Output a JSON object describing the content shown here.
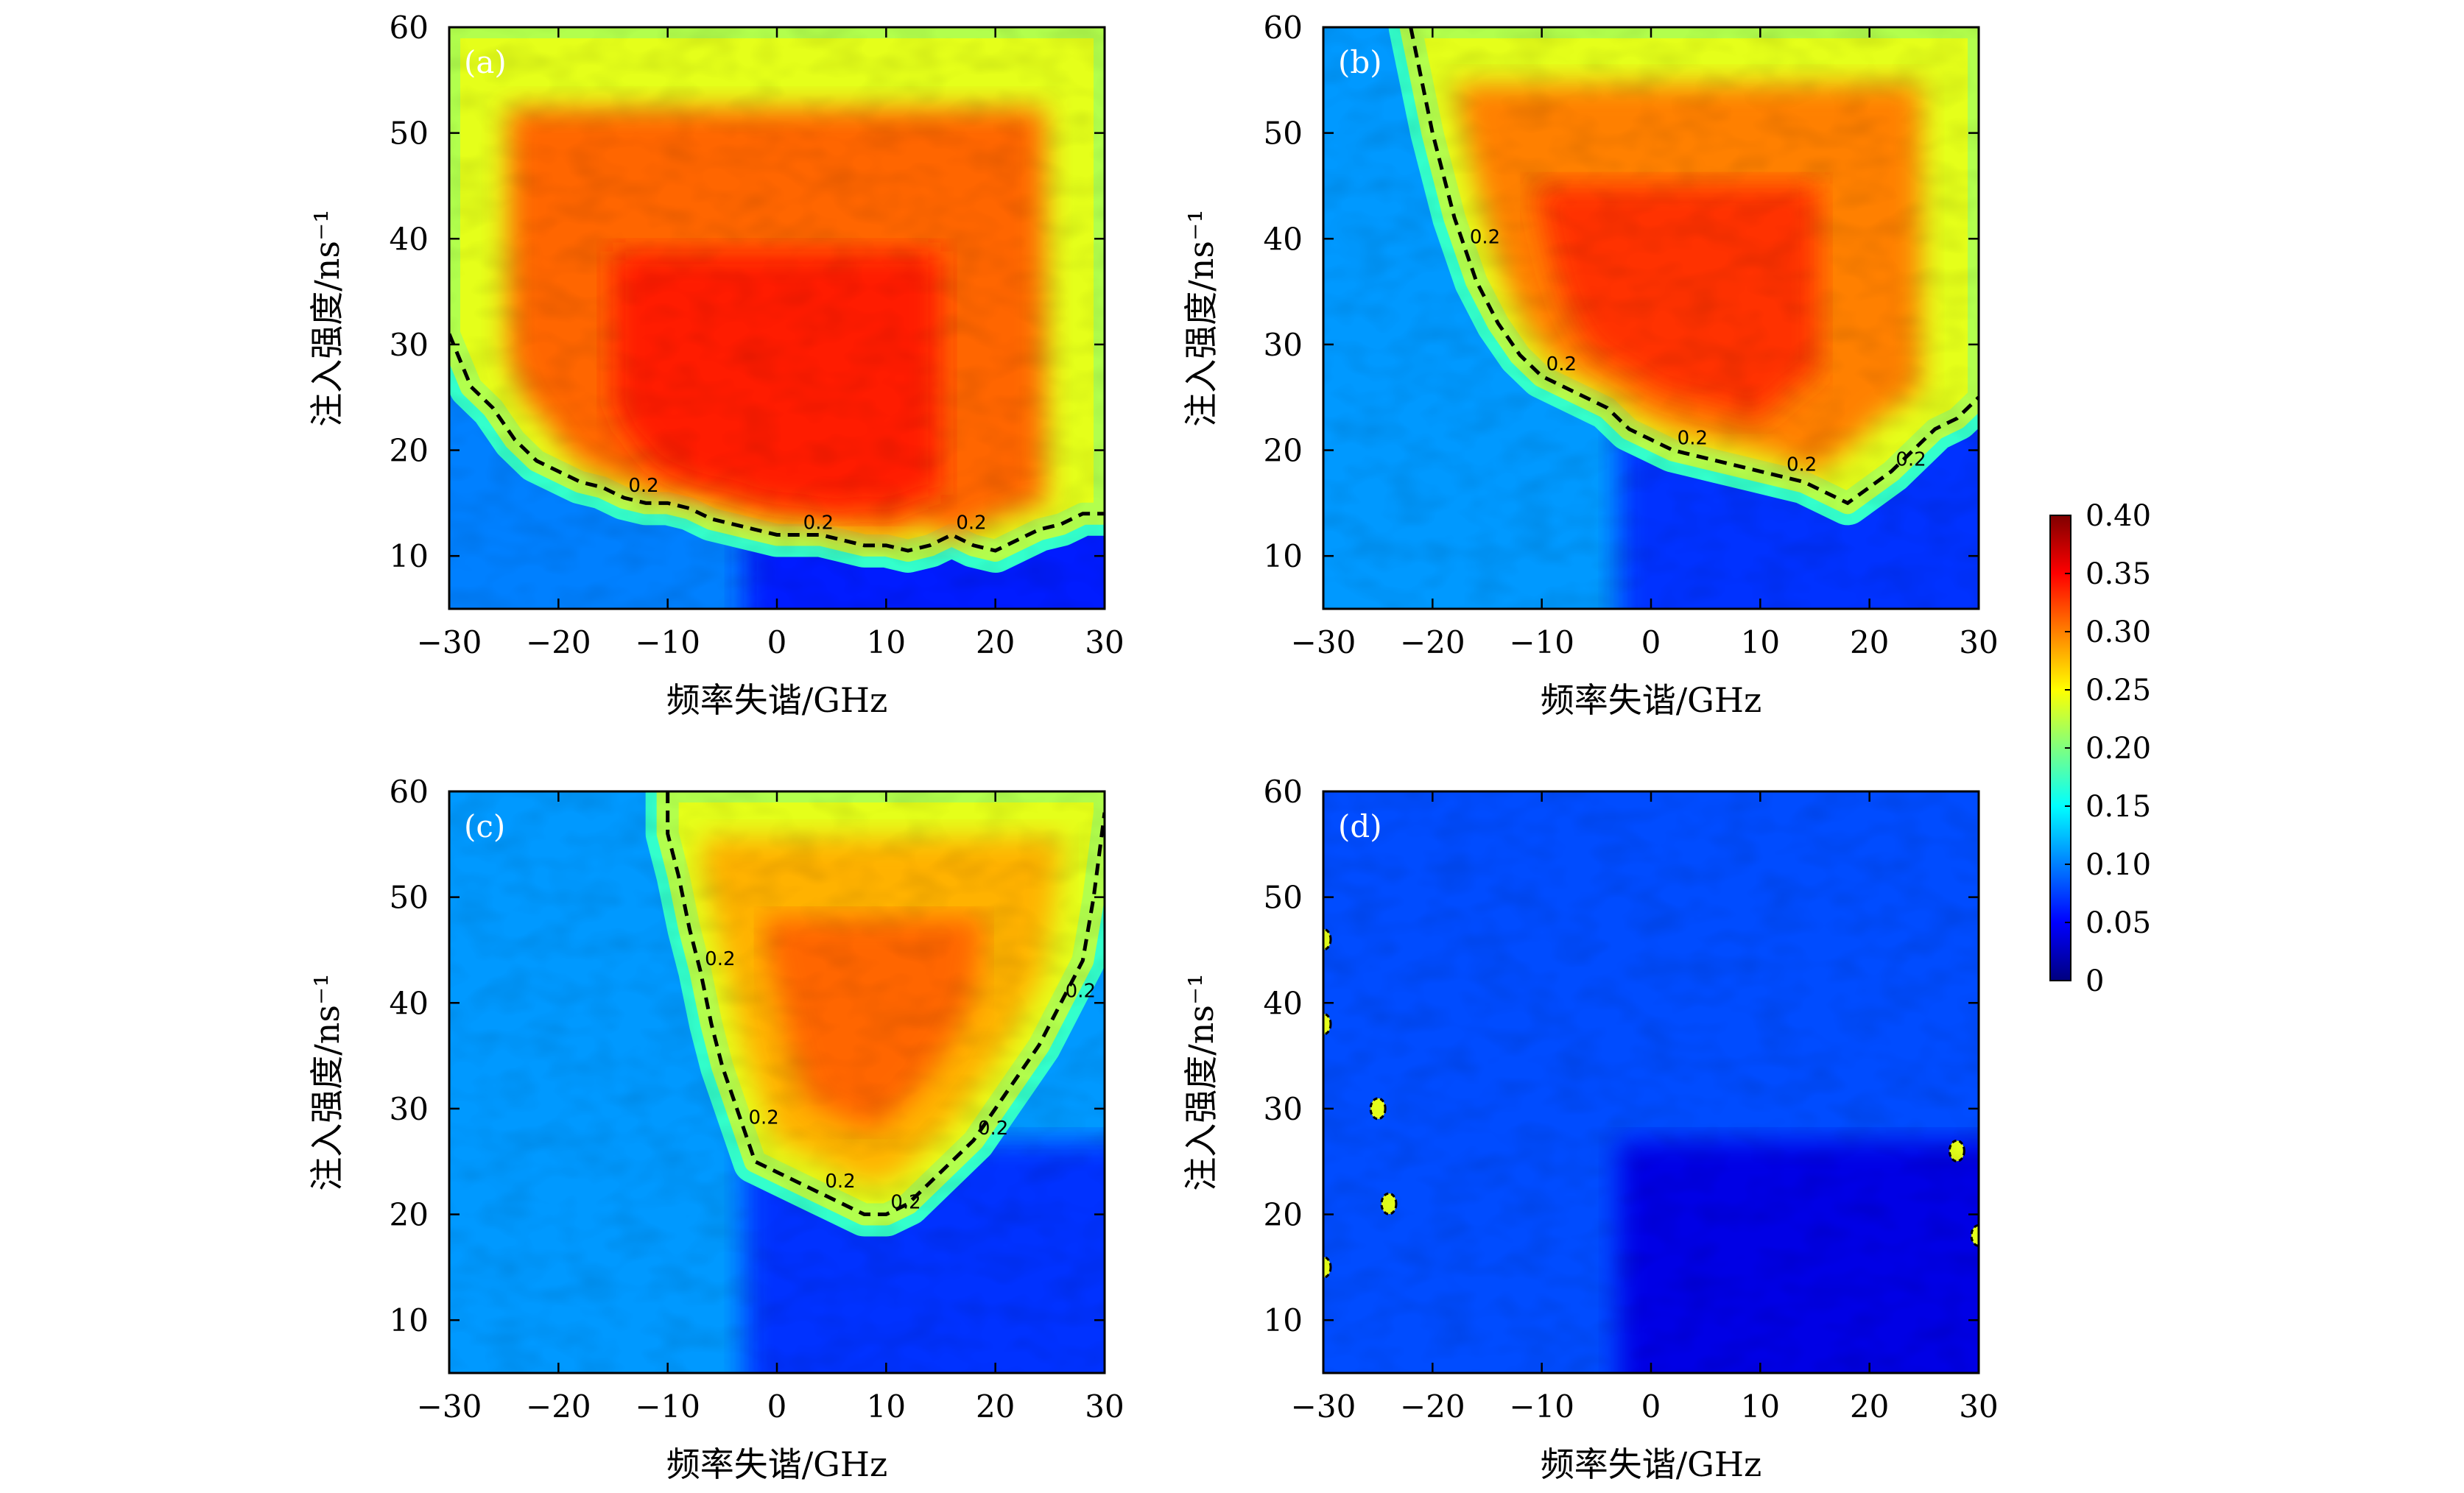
{
  "chart_data": [
    {
      "type": "heatmap",
      "panel_label": "(a)",
      "xlabel": "频率失谐/GHz",
      "ylabel": "注入强度/ns⁻¹",
      "xlim": [
        -30,
        30
      ],
      "ylim": [
        5,
        60
      ],
      "x_ticks": [
        "−30",
        "−20",
        "−10",
        "0",
        "10",
        "20",
        "30"
      ],
      "y_ticks": [
        "10",
        "20",
        "30",
        "40",
        "50",
        "60"
      ],
      "contour_level": 0.2,
      "contour_labels": [
        "0.2",
        "0.2",
        "0.2"
      ],
      "contour_boundary": {
        "x": [
          -30,
          -28,
          -26,
          -24,
          -22,
          -20,
          -18,
          -16,
          -14,
          -12,
          -10,
          -8,
          -6,
          -4,
          -2,
          0,
          2,
          4,
          6,
          8,
          10,
          12,
          14,
          16,
          18,
          20,
          22,
          24,
          26,
          28,
          30
        ],
        "y": [
          31,
          26,
          24,
          21,
          19,
          18,
          17,
          16.5,
          15.5,
          15,
          15,
          14.5,
          13.5,
          13,
          12.5,
          12,
          12,
          12,
          11.5,
          11,
          11,
          10.5,
          11,
          12,
          11,
          10.5,
          11.5,
          12.5,
          13,
          14,
          14
        ]
      },
      "region_above_mean": 0.31,
      "region_below_mean": 0.1
    },
    {
      "type": "heatmap",
      "panel_label": "(b)",
      "xlabel": "频率失谐/GHz",
      "ylabel": "注入强度/ns⁻¹",
      "xlim": [
        -30,
        30
      ],
      "ylim": [
        5,
        60
      ],
      "x_ticks": [
        "−30",
        "−20",
        "−10",
        "0",
        "10",
        "20",
        "30"
      ],
      "y_ticks": [
        "10",
        "20",
        "30",
        "40",
        "50",
        "60"
      ],
      "contour_level": 0.2,
      "contour_labels": [
        "0.2",
        "0.2",
        "0.2",
        "0.2",
        "0.2"
      ],
      "contour_boundary": {
        "x": [
          -22,
          -21,
          -20,
          -19,
          -18,
          -17,
          -16,
          -15,
          -14,
          -12,
          -10,
          -8,
          -6,
          -4,
          -2,
          0,
          2,
          4,
          6,
          8,
          10,
          12,
          14,
          16,
          18,
          20,
          22,
          24,
          26,
          28,
          30
        ],
        "y": [
          60,
          55,
          50,
          46,
          42,
          39,
          36,
          34,
          32,
          29,
          27,
          26,
          25,
          24,
          22,
          21,
          20,
          19.5,
          19,
          18.5,
          18,
          17.5,
          17,
          16,
          15,
          16.5,
          18,
          20,
          22,
          23,
          25
        ]
      },
      "region_above_mean": 0.3,
      "region_below_mean": 0.11
    },
    {
      "type": "heatmap",
      "panel_label": "(c)",
      "xlabel": "频率失谐/GHz",
      "ylabel": "注入强度/ns⁻¹",
      "xlim": [
        -30,
        30
      ],
      "ylim": [
        5,
        60
      ],
      "x_ticks": [
        "−30",
        "−20",
        "−10",
        "0",
        "10",
        "20",
        "30"
      ],
      "y_ticks": [
        "10",
        "20",
        "30",
        "40",
        "50",
        "60"
      ],
      "contour_level": 0.2,
      "contour_labels": [
        "0.2",
        "0.2",
        "0.2",
        "0.2",
        "0.2",
        "0.2"
      ],
      "contour_boundary": {
        "x": [
          -10,
          -10,
          -9,
          -8,
          -7,
          -6,
          -5,
          -4,
          -3,
          -2,
          0,
          2,
          4,
          6,
          8,
          10,
          12,
          14,
          16,
          18,
          20,
          22,
          24,
          26,
          28,
          29,
          30
        ],
        "y": [
          60,
          56,
          52,
          47,
          43,
          38,
          34,
          31,
          28,
          25,
          24,
          23,
          22,
          21,
          20,
          20,
          21,
          23,
          25,
          27,
          30,
          33,
          36,
          40,
          44,
          50,
          58
        ]
      },
      "region_above_mean": 0.28,
      "region_below_mean": 0.11
    },
    {
      "type": "heatmap",
      "panel_label": "(d)",
      "xlabel": "频率失谐/GHz",
      "ylabel": "注入强度/ns⁻¹",
      "xlim": [
        -30,
        30
      ],
      "ylim": [
        5,
        60
      ],
      "x_ticks": [
        "−30",
        "−20",
        "−10",
        "0",
        "10",
        "20",
        "30"
      ],
      "y_ticks": [
        "10",
        "20",
        "30",
        "40",
        "50",
        "60"
      ],
      "contour_level": 0.2,
      "contour_labels": [],
      "region_above_mean": null,
      "region_below_mean": 0.08
    }
  ],
  "colorbar": {
    "range": [
      0,
      0.4
    ],
    "tick_labels": [
      "0.40",
      "0.35",
      "0.30",
      "0.25",
      "0.20",
      "0.15",
      "0.10",
      "0.05",
      "0"
    ],
    "colormap": "jet"
  },
  "colors": {
    "dark_red": "#7f0000",
    "red": "#e8321a",
    "orange": "#f6861f",
    "yellow": "#ffe600",
    "cyan": "#19d4f0",
    "blue": "#1a5cf0",
    "dark_blue": "#00007f",
    "contour": "#000000"
  }
}
